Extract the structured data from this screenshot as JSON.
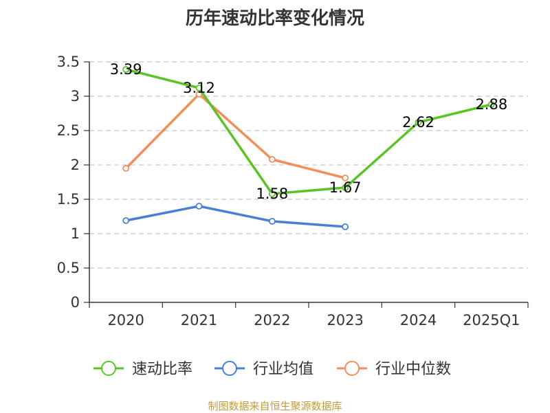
{
  "chart_data": {
    "type": "line",
    "title": "历年速动比率变化情况",
    "categories": [
      "2020",
      "2021",
      "2022",
      "2023",
      "2024",
      "2025Q1"
    ],
    "ylim": [
      0,
      3.5
    ],
    "yticks": [
      "0",
      "0.5",
      "1",
      "1.5",
      "2",
      "2.5",
      "3",
      "3.5"
    ],
    "grid": true,
    "legend_position": "bottom",
    "series": [
      {
        "name": "速动比率",
        "color": "#5bc425",
        "values": [
          3.39,
          3.12,
          1.58,
          1.67,
          2.62,
          2.88
        ],
        "labels": [
          "3.39",
          "3.12",
          "1.58",
          "1.67",
          "2.62",
          "2.88"
        ]
      },
      {
        "name": "行业均值",
        "color": "#4a7fd6",
        "values": [
          1.19,
          1.4,
          1.18,
          1.1,
          null,
          null
        ]
      },
      {
        "name": "行业中位数",
        "color": "#f58d5a",
        "values": [
          1.95,
          3.03,
          2.08,
          1.81,
          null,
          null
        ]
      }
    ]
  },
  "footer": {
    "source": "制图数据来自恒生聚源数据库"
  }
}
